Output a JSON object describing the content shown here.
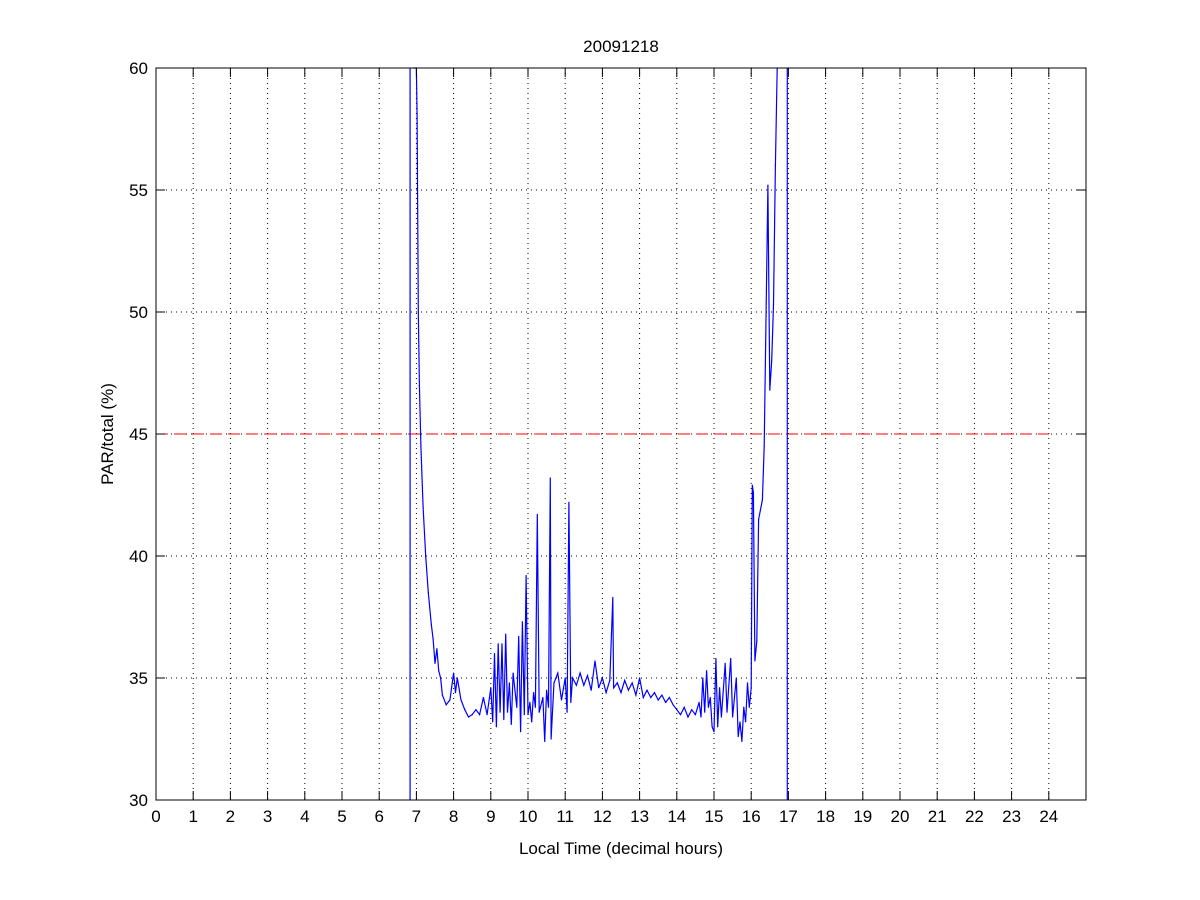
{
  "chart_data": {
    "type": "line",
    "title": "20091218",
    "xlabel": "Local Time (decimal hours)",
    "ylabel": "PAR/total (%)",
    "xlim": [
      0,
      25
    ],
    "ylim": [
      30,
      60
    ],
    "xticks": [
      0,
      1,
      2,
      3,
      4,
      5,
      6,
      7,
      8,
      9,
      10,
      11,
      12,
      13,
      14,
      15,
      16,
      17,
      18,
      19,
      20,
      21,
      22,
      23,
      24
    ],
    "yticks": [
      30,
      35,
      40,
      45,
      50,
      55,
      60
    ],
    "grid": true,
    "colors": {
      "series": "#0000ff",
      "reference": "#ff0000"
    },
    "vertical_lines": [
      6.83,
      16.97
    ],
    "reference_line": {
      "y": 45,
      "x_range": [
        0,
        24
      ],
      "style": "dashed"
    },
    "series": [
      {
        "x": [
          6.93,
          7.0,
          7.02,
          7.05,
          7.08,
          7.12,
          7.18,
          7.25,
          7.32,
          7.4,
          7.45,
          7.5,
          7.55,
          7.6,
          7.65,
          7.7,
          7.8,
          7.9,
          8.0,
          8.05,
          8.1,
          8.2,
          8.3,
          8.4,
          8.5,
          8.6,
          8.7,
          8.8,
          8.9,
          9.0,
          9.05,
          9.1,
          9.15,
          9.2,
          9.25,
          9.3,
          9.35,
          9.4,
          9.45,
          9.5,
          9.55,
          9.6,
          9.7,
          9.75,
          9.8,
          9.85,
          9.9,
          9.95,
          10.0,
          10.05,
          10.1,
          10.15,
          10.2,
          10.25,
          10.3,
          10.4,
          10.45,
          10.5,
          10.55,
          10.6,
          10.62,
          10.7,
          10.8,
          10.9,
          11.0,
          11.05,
          11.1,
          11.15,
          11.2,
          11.3,
          11.4,
          11.5,
          11.6,
          11.7,
          11.8,
          11.9,
          12.0,
          12.1,
          12.2,
          12.28,
          12.3,
          12.4,
          12.5,
          12.6,
          12.7,
          12.8,
          12.9,
          13.0,
          13.1,
          13.2,
          13.3,
          13.4,
          13.5,
          13.6,
          13.7,
          13.8,
          13.9,
          14.0,
          14.1,
          14.2,
          14.3,
          14.4,
          14.5,
          14.6,
          14.65,
          14.7,
          14.75,
          14.8,
          14.85,
          14.9,
          14.95,
          15.0,
          15.05,
          15.1,
          15.15,
          15.2,
          15.3,
          15.35,
          15.45,
          15.5,
          15.6,
          15.65,
          15.7,
          15.75,
          15.8,
          15.85,
          15.9,
          15.95,
          16.0,
          16.03,
          16.06,
          16.1,
          16.15,
          16.2,
          16.3,
          16.35,
          16.4,
          16.45,
          16.5,
          16.55,
          16.6,
          16.65,
          16.7
        ],
        "y": [
          60,
          60,
          58,
          50,
          47,
          44.5,
          42,
          40,
          38.5,
          37.2,
          36.6,
          35.6,
          36.2,
          35.3,
          35.0,
          34.3,
          33.9,
          34.1,
          35.2,
          34.4,
          35.0,
          34.1,
          33.7,
          33.4,
          33.5,
          33.7,
          33.5,
          34.2,
          33.5,
          34.6,
          33.2,
          36.0,
          33.0,
          36.4,
          33.6,
          36.4,
          33.3,
          36.8,
          33.6,
          34.8,
          33.1,
          35.2,
          33.8,
          36.7,
          32.8,
          37.3,
          33.5,
          39.2,
          33.5,
          34.0,
          33.2,
          34.4,
          33.8,
          41.7,
          33.6,
          34.2,
          32.4,
          34.5,
          33.8,
          43.2,
          32.5,
          34.8,
          35.2,
          34.1,
          35.0,
          33.6,
          42.2,
          34.0,
          35.0,
          34.7,
          35.2,
          34.7,
          35.1,
          34.5,
          35.7,
          34.6,
          35.0,
          34.4,
          34.9,
          38.3,
          34.6,
          34.8,
          34.4,
          34.9,
          34.5,
          34.8,
          34.3,
          35.0,
          34.2,
          34.5,
          34.2,
          34.4,
          34.1,
          34.3,
          34.0,
          34.2,
          33.9,
          33.7,
          33.5,
          33.8,
          33.4,
          33.7,
          33.5,
          34.0,
          33.4,
          35.0,
          33.6,
          35.3,
          33.8,
          34.2,
          33.0,
          32.8,
          35.8,
          33.0,
          34.6,
          33.4,
          35.6,
          33.6,
          35.8,
          33.4,
          35.0,
          32.6,
          33.2,
          32.4,
          33.8,
          33.2,
          34.8,
          33.8,
          34.6,
          42.9,
          42.6,
          35.7,
          36.5,
          41.5,
          42.3,
          44.5,
          50,
          55.2,
          46.8,
          48,
          50.3,
          56,
          60
        ]
      }
    ]
  }
}
